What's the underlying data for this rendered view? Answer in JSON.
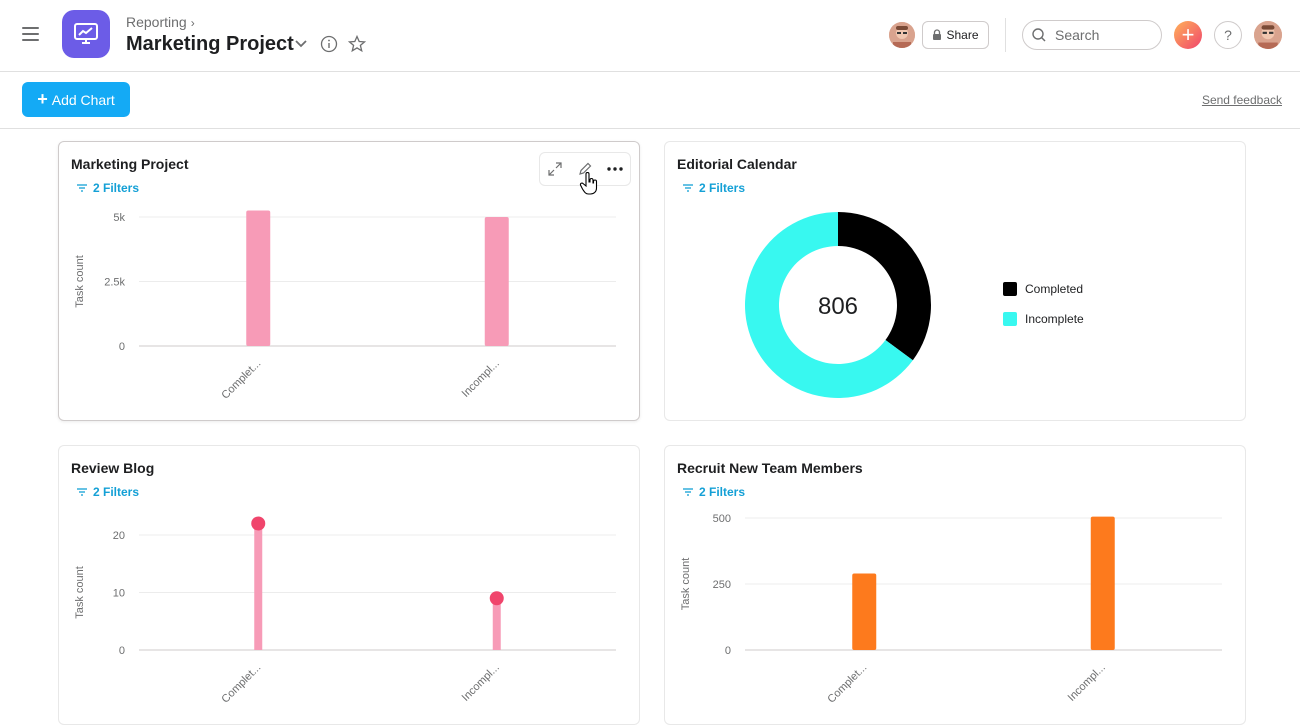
{
  "header": {
    "breadcrumb": "Reporting",
    "breadcrumb_chevron": "›",
    "title": "Marketing Project",
    "share_label": "Share",
    "search_placeholder": "Search",
    "plus_label": "+",
    "help_label": "?"
  },
  "toolbar": {
    "add_chart_label": "Add Chart",
    "add_chart_plus": "+",
    "feedback_label": "Send feedback"
  },
  "colors": {
    "pink": "#f79bb7",
    "pink_dot": "#f0456c",
    "orange": "#fd7a1d",
    "black": "#000000",
    "cyan": "#38f8f0",
    "accent": "#14aaf5"
  },
  "cards": [
    {
      "title": "Marketing Project",
      "filters": "2 Filters"
    },
    {
      "title": "Editorial Calendar",
      "filters": "2 Filters"
    },
    {
      "title": "Review Blog",
      "filters": "2 Filters"
    },
    {
      "title": "Recruit New Team Members",
      "filters": "2 Filters"
    }
  ],
  "chart_data": [
    {
      "type": "bar",
      "title": "Marketing Project",
      "categories": [
        "Complet...",
        "Incompl..."
      ],
      "values": [
        5250,
        5000
      ],
      "ylabel": "Task count",
      "ylim": [
        0,
        5000
      ],
      "yticks": [
        "0",
        "2.5k",
        "5k"
      ],
      "color": "#f79bb7"
    },
    {
      "type": "pie",
      "title": "Editorial Calendar",
      "center_label": "806",
      "labels": [
        "Completed",
        "Incomplete"
      ],
      "values": [
        283,
        523
      ],
      "colors": [
        "#000000",
        "#38f8f0"
      ],
      "legend": "right"
    },
    {
      "type": "scatter",
      "title": "Review Blog",
      "categories": [
        "Complet...",
        "Incompl..."
      ],
      "values": [
        22,
        9
      ],
      "ylabel": "Task count",
      "ylim": [
        0,
        20
      ],
      "yticks": [
        "0",
        "10",
        "20"
      ],
      "color": "#f79bb7"
    },
    {
      "type": "bar",
      "title": "Recruit New Team Members",
      "categories": [
        "Complet...",
        "Incompl..."
      ],
      "values": [
        290,
        505
      ],
      "ylabel": "Task count",
      "ylim": [
        0,
        500
      ],
      "yticks": [
        "0",
        "250",
        "500"
      ],
      "color": "#fd7a1d"
    }
  ]
}
